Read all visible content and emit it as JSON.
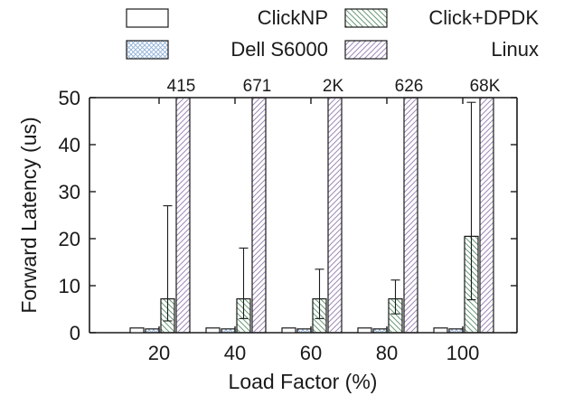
{
  "chart_data": {
    "type": "bar",
    "xlabel": "Load Factor (%)",
    "ylabel": "Forward Latency (us)",
    "ylim": [
      0,
      50
    ],
    "yticks": [
      0,
      10,
      20,
      30,
      40,
      50
    ],
    "categories": [
      "20",
      "40",
      "60",
      "80",
      "100"
    ],
    "grid": false,
    "legend_position": "top",
    "series": [
      {
        "name": "ClickNP",
        "pattern": "plain",
        "color": "#ffffff",
        "values": [
          1,
          1,
          1,
          1,
          1
        ]
      },
      {
        "name": "Dell S6000",
        "pattern": "crosshatch",
        "color": "#8fb0d8",
        "values": [
          0.8,
          0.8,
          0.8,
          0.8,
          0.8
        ]
      },
      {
        "name": "Click+DPDK",
        "pattern": "diagonal-back",
        "color": "#6a9a78",
        "values": [
          7.2,
          7.2,
          7.2,
          7.2,
          20.5
        ],
        "error_low": [
          2.5,
          3,
          3,
          4,
          7
        ],
        "error_high": [
          27,
          18,
          13.5,
          11.2,
          49
        ]
      },
      {
        "name": "Linux",
        "pattern": "diagonal-fwd",
        "color": "#a08ab8",
        "values": [
          415,
          671,
          2000,
          626,
          68000
        ],
        "value_labels": [
          "415",
          "671",
          "2K",
          "626",
          "68K"
        ]
      }
    ]
  }
}
